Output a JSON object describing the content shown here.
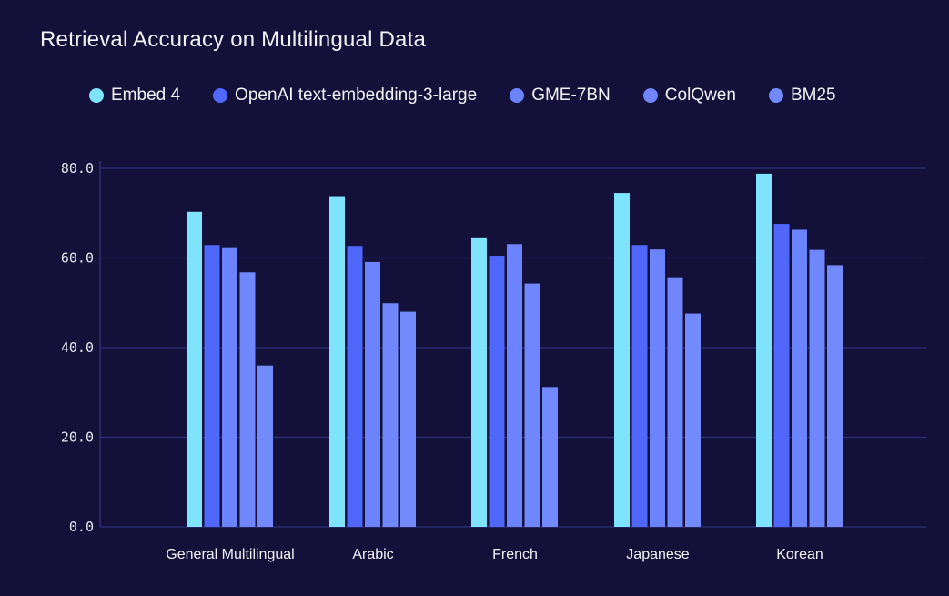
{
  "chart_data": {
    "type": "bar",
    "title": "Retrieval Accuracy on Multilingual Data",
    "xlabel": "",
    "ylabel": "",
    "ylim": [
      0,
      80
    ],
    "yticks": [
      "0.0",
      "20.0",
      "40.0",
      "60.0",
      "80.0"
    ],
    "grid": true,
    "legend_position": "top",
    "categories": [
      "General Multilingual",
      "Arabic",
      "French",
      "Japanese",
      "Korean"
    ],
    "series": [
      {
        "name": "Embed 4",
        "color": "#7fe3fb",
        "values": [
          70.3,
          73.8,
          64.4,
          74.5,
          78.8
        ]
      },
      {
        "name": "OpenAI text-embedding-3-large",
        "color": "#4f67fb",
        "values": [
          62.9,
          62.7,
          60.5,
          62.9,
          67.6
        ]
      },
      {
        "name": "GME-7BN",
        "color": "#6b83fc",
        "values": [
          62.2,
          59.1,
          63.1,
          61.9,
          66.3
        ]
      },
      {
        "name": "ColQwen",
        "color": "#6f86fc",
        "values": [
          56.8,
          49.9,
          54.3,
          55.7,
          61.8
        ]
      },
      {
        "name": "BM25",
        "color": "#728afc",
        "values": [
          36.0,
          48.0,
          31.2,
          47.6,
          58.4
        ]
      }
    ]
  }
}
